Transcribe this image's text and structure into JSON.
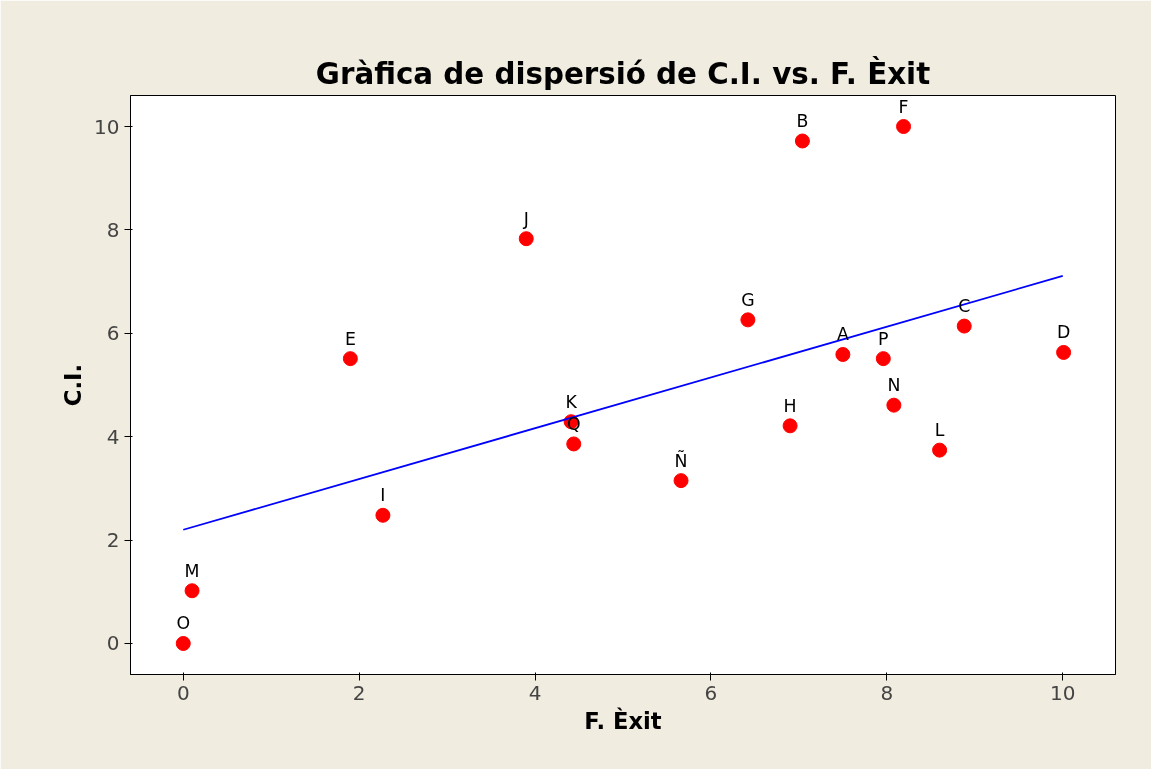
{
  "chart_data": {
    "type": "scatter",
    "title": "Gràfica de dispersió de C.I. vs. F. Èxit",
    "xlabel": "F. Èxit",
    "ylabel": "C.I.",
    "xlim": [
      -0.6,
      10.6
    ],
    "ylim": [
      -0.6,
      10.6
    ],
    "xticks": [
      0,
      2,
      4,
      6,
      8,
      10
    ],
    "yticks": [
      0,
      2,
      4,
      6,
      8,
      10
    ],
    "grid": false,
    "marker": "circle",
    "series": [
      {
        "color": "#ff0000",
        "x": [
          0,
          0.1,
          2.27,
          1.9,
          3.9,
          4.41,
          4.44,
          5.66,
          6.42,
          6.9,
          7.04,
          7.5,
          7.96,
          8.08,
          8.19,
          8.6,
          8.88,
          10.01
        ],
        "values": [
          0,
          1.02,
          2.48,
          5.51,
          7.83,
          4.29,
          3.86,
          3.15,
          6.26,
          4.21,
          9.72,
          5.59,
          5.51,
          4.61,
          10,
          3.74,
          6.14,
          5.63
        ]
      },
      {
        "type": "line",
        "color": "#0000ff",
        "marker": "none",
        "line_style": "solid",
        "x": [
          0,
          10
        ],
        "values": [
          2.2,
          7.11
        ]
      }
    ],
    "annotations": [
      {
        "text": "O",
        "x": 0,
        "y": 0
      },
      {
        "text": "M",
        "x": 0.1,
        "y": 1.02
      },
      {
        "text": "I",
        "x": 2.27,
        "y": 2.48
      },
      {
        "text": "E",
        "x": 1.9,
        "y": 5.51
      },
      {
        "text": "J",
        "x": 3.9,
        "y": 7.83
      },
      {
        "text": "K",
        "x": 4.41,
        "y": 4.29
      },
      {
        "text": "Q",
        "x": 4.44,
        "y": 3.86
      },
      {
        "text": "Ñ",
        "x": 5.66,
        "y": 3.15
      },
      {
        "text": "G",
        "x": 6.42,
        "y": 6.26
      },
      {
        "text": "H",
        "x": 6.9,
        "y": 4.21
      },
      {
        "text": "B",
        "x": 7.04,
        "y": 9.72
      },
      {
        "text": "A",
        "x": 7.5,
        "y": 5.59
      },
      {
        "text": "P",
        "x": 7.96,
        "y": 5.51
      },
      {
        "text": "N",
        "x": 8.08,
        "y": 4.61
      },
      {
        "text": "F",
        "x": 8.19,
        "y": 10
      },
      {
        "text": "L",
        "x": 8.6,
        "y": 3.74
      },
      {
        "text": "C",
        "x": 8.88,
        "y": 6.14
      },
      {
        "text": "D",
        "x": 10.01,
        "y": 5.63
      }
    ]
  }
}
